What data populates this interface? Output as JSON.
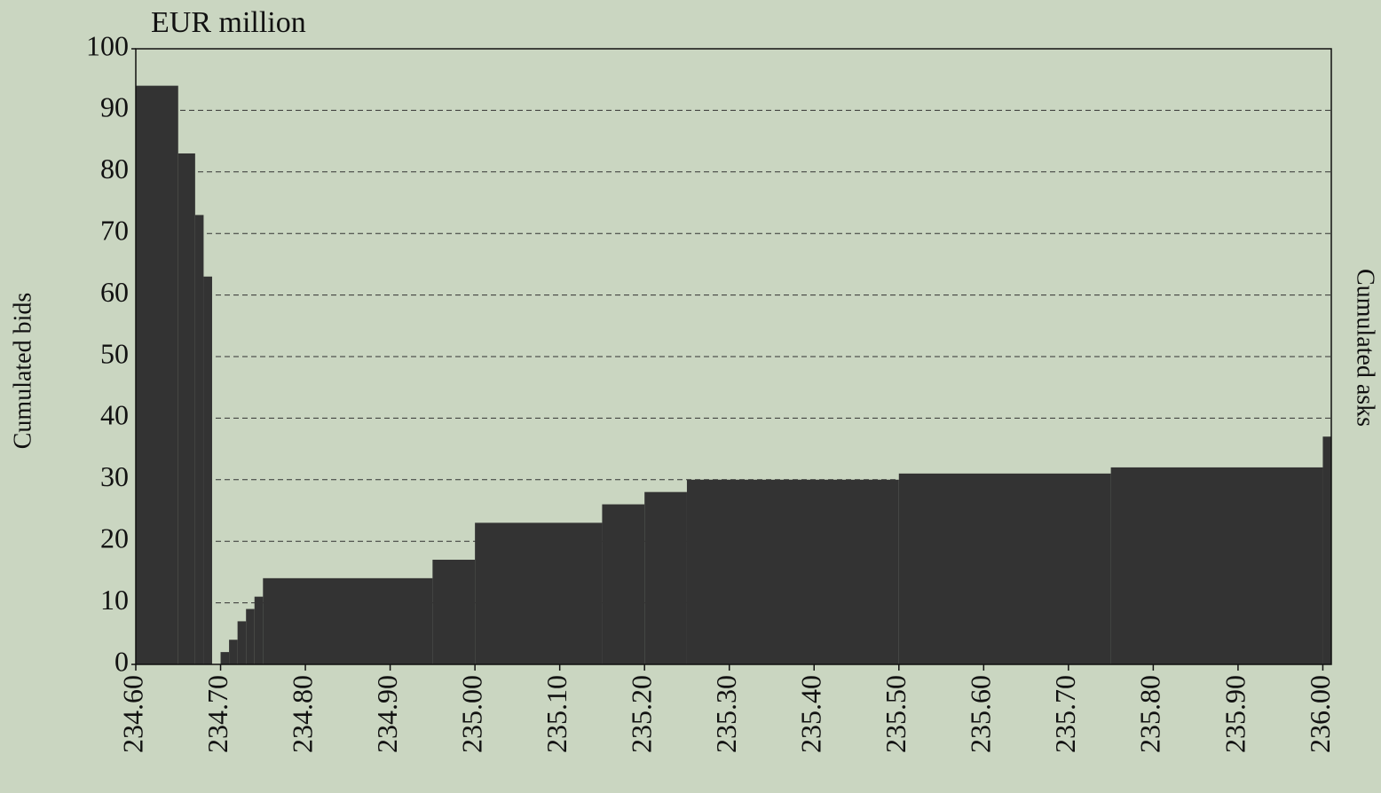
{
  "chart_data": {
    "type": "histogram",
    "unit_label": "EUR million",
    "y_label": "Cumulated bids",
    "y2_label": "Cumulated asks",
    "bins": [
      234.6,
      234.65,
      234.67,
      234.68,
      234.69,
      234.7,
      234.71,
      234.72,
      234.73,
      234.74,
      234.75,
      234.95,
      235.0,
      235.15,
      235.2,
      235.25,
      235.5,
      235.75,
      236.0,
      236.01
    ],
    "values": [
      94,
      83,
      73,
      63,
      0,
      2,
      4,
      7,
      9,
      11,
      14,
      17,
      23,
      26,
      28,
      30,
      31,
      32,
      37
    ],
    "color": "#333333",
    "xlim": [
      234.6,
      236.01
    ],
    "xticks": [
      {
        "value": 234.6,
        "label": "234.60"
      },
      {
        "value": 234.7,
        "label": "234.70"
      },
      {
        "value": 234.8,
        "label": "234.80"
      },
      {
        "value": 234.9,
        "label": "234.90"
      },
      {
        "value": 235.0,
        "label": "235.00"
      },
      {
        "value": 235.1,
        "label": "235.10"
      },
      {
        "value": 235.2,
        "label": "235.20"
      },
      {
        "value": 235.3,
        "label": "235.30"
      },
      {
        "value": 235.4,
        "label": "235.40"
      },
      {
        "value": 235.5,
        "label": "235.50"
      },
      {
        "value": 235.6,
        "label": "235.60"
      },
      {
        "value": 235.7,
        "label": "235.70"
      },
      {
        "value": 235.8,
        "label": "235.80"
      },
      {
        "value": 235.9,
        "label": "235.90"
      },
      {
        "value": 236.0,
        "label": "236.00"
      }
    ],
    "ylim": [
      0,
      100
    ],
    "yticks": [
      0,
      10,
      20,
      30,
      40,
      50,
      60,
      70,
      80,
      90,
      100
    ],
    "grid": true
  }
}
